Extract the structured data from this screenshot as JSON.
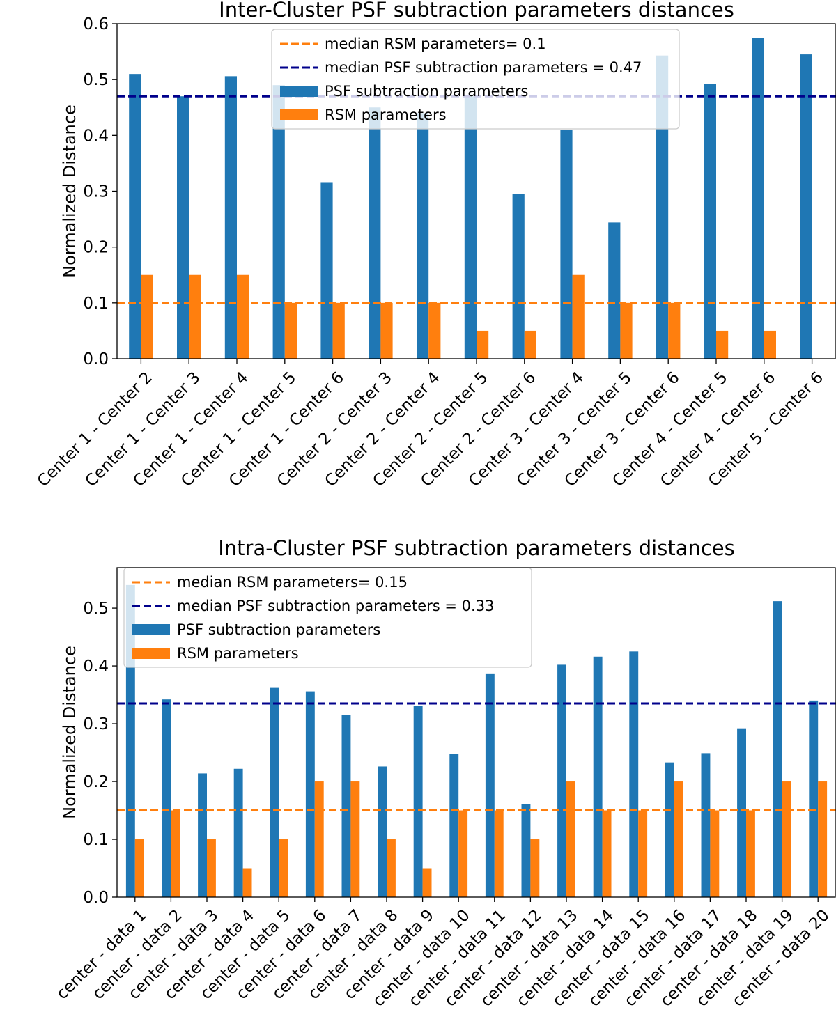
{
  "chart_data": [
    {
      "type": "bar",
      "title": "Inter-Cluster PSF subtraction parameters distances",
      "xlabel": "",
      "ylabel": "Normalized Distance",
      "ylim": [
        0,
        0.6
      ],
      "yticks": [
        "0.0",
        "0.1",
        "0.2",
        "0.3",
        "0.4",
        "0.5",
        "0.6"
      ],
      "ytick_values": [
        0,
        0.1,
        0.2,
        0.3,
        0.4,
        0.5,
        0.6
      ],
      "legend_position": "top-center",
      "categories": [
        "Center 1 - Center 2",
        "Center 1 - Center 3",
        "Center 1 - Center 4",
        "Center 1 - Center 5",
        "Center 1 - Center 6",
        "Center 2 - Center 3",
        "Center 2 - Center 4",
        "Center 2 - Center 5",
        "Center 2 - Center 6",
        "Center 3 - Center 4",
        "Center 3 - Center 5",
        "Center 3 - Center 6",
        "Center 4 - Center 5",
        "Center 4 - Center 6",
        "Center 5 - Center 6"
      ],
      "series": [
        {
          "name": "PSF subtraction parameters",
          "color": "#1f77b4",
          "values": [
            0.51,
            0.47,
            0.506,
            0.49,
            0.315,
            0.45,
            0.44,
            0.47,
            0.295,
            0.41,
            0.244,
            0.543,
            0.492,
            0.574,
            0.545
          ]
        },
        {
          "name": "RSM parameters",
          "color": "#ff7f0e",
          "values": [
            0.15,
            0.15,
            0.15,
            0.1,
            0.1,
            0.1,
            0.1,
            0.05,
            0.05,
            0.15,
            0.1,
            0.1,
            0.05,
            0.05,
            0.0
          ]
        }
      ],
      "hlines": [
        {
          "label": "median RSM parameters= 0.1",
          "value": 0.1,
          "color": "#ff7f0e"
        },
        {
          "label": "median PSF subtraction parameters = 0.47",
          "value": 0.47,
          "color": "#00008b"
        }
      ]
    },
    {
      "type": "bar",
      "title": "Intra-Cluster PSF subtraction parameters distances",
      "xlabel": "",
      "ylabel": "Normalized Distance",
      "ylim": [
        0,
        0.57
      ],
      "yticks": [
        "0.0",
        "0.1",
        "0.2",
        "0.3",
        "0.4",
        "0.5"
      ],
      "ytick_values": [
        0,
        0.1,
        0.2,
        0.3,
        0.4,
        0.5
      ],
      "legend_position": "top-left",
      "categories": [
        "center - data 1",
        "center - data 2",
        "center - data 3",
        "center - data 4",
        "center - data 5",
        "center - data 6",
        "center - data 7",
        "center - data 8",
        "center - data 9",
        "center - data 10",
        "center - data 11",
        "center - data 12",
        "center - data 13",
        "center - data 14",
        "center - data 15",
        "center - data 16",
        "center - data 17",
        "center - data 18",
        "center - data 19",
        "center - data 20"
      ],
      "series": [
        {
          "name": "PSF subtraction parameters",
          "color": "#1f77b4",
          "values": [
            0.54,
            0.342,
            0.214,
            0.222,
            0.362,
            0.356,
            0.315,
            0.226,
            0.331,
            0.248,
            0.387,
            0.161,
            0.402,
            0.416,
            0.425,
            0.233,
            0.249,
            0.292,
            0.512,
            0.34
          ]
        },
        {
          "name": "RSM parameters",
          "color": "#ff7f0e",
          "values": [
            0.1,
            0.15,
            0.1,
            0.05,
            0.1,
            0.2,
            0.2,
            0.1,
            0.05,
            0.15,
            0.15,
            0.1,
            0.2,
            0.15,
            0.15,
            0.2,
            0.15,
            0.15,
            0.2,
            0.2
          ]
        }
      ],
      "hlines": [
        {
          "label": "median RSM parameters= 0.15",
          "value": 0.15,
          "color": "#ff7f0e"
        },
        {
          "label": "median PSF subtraction parameters = 0.33",
          "value": 0.335,
          "color": "#00008b"
        }
      ]
    }
  ]
}
